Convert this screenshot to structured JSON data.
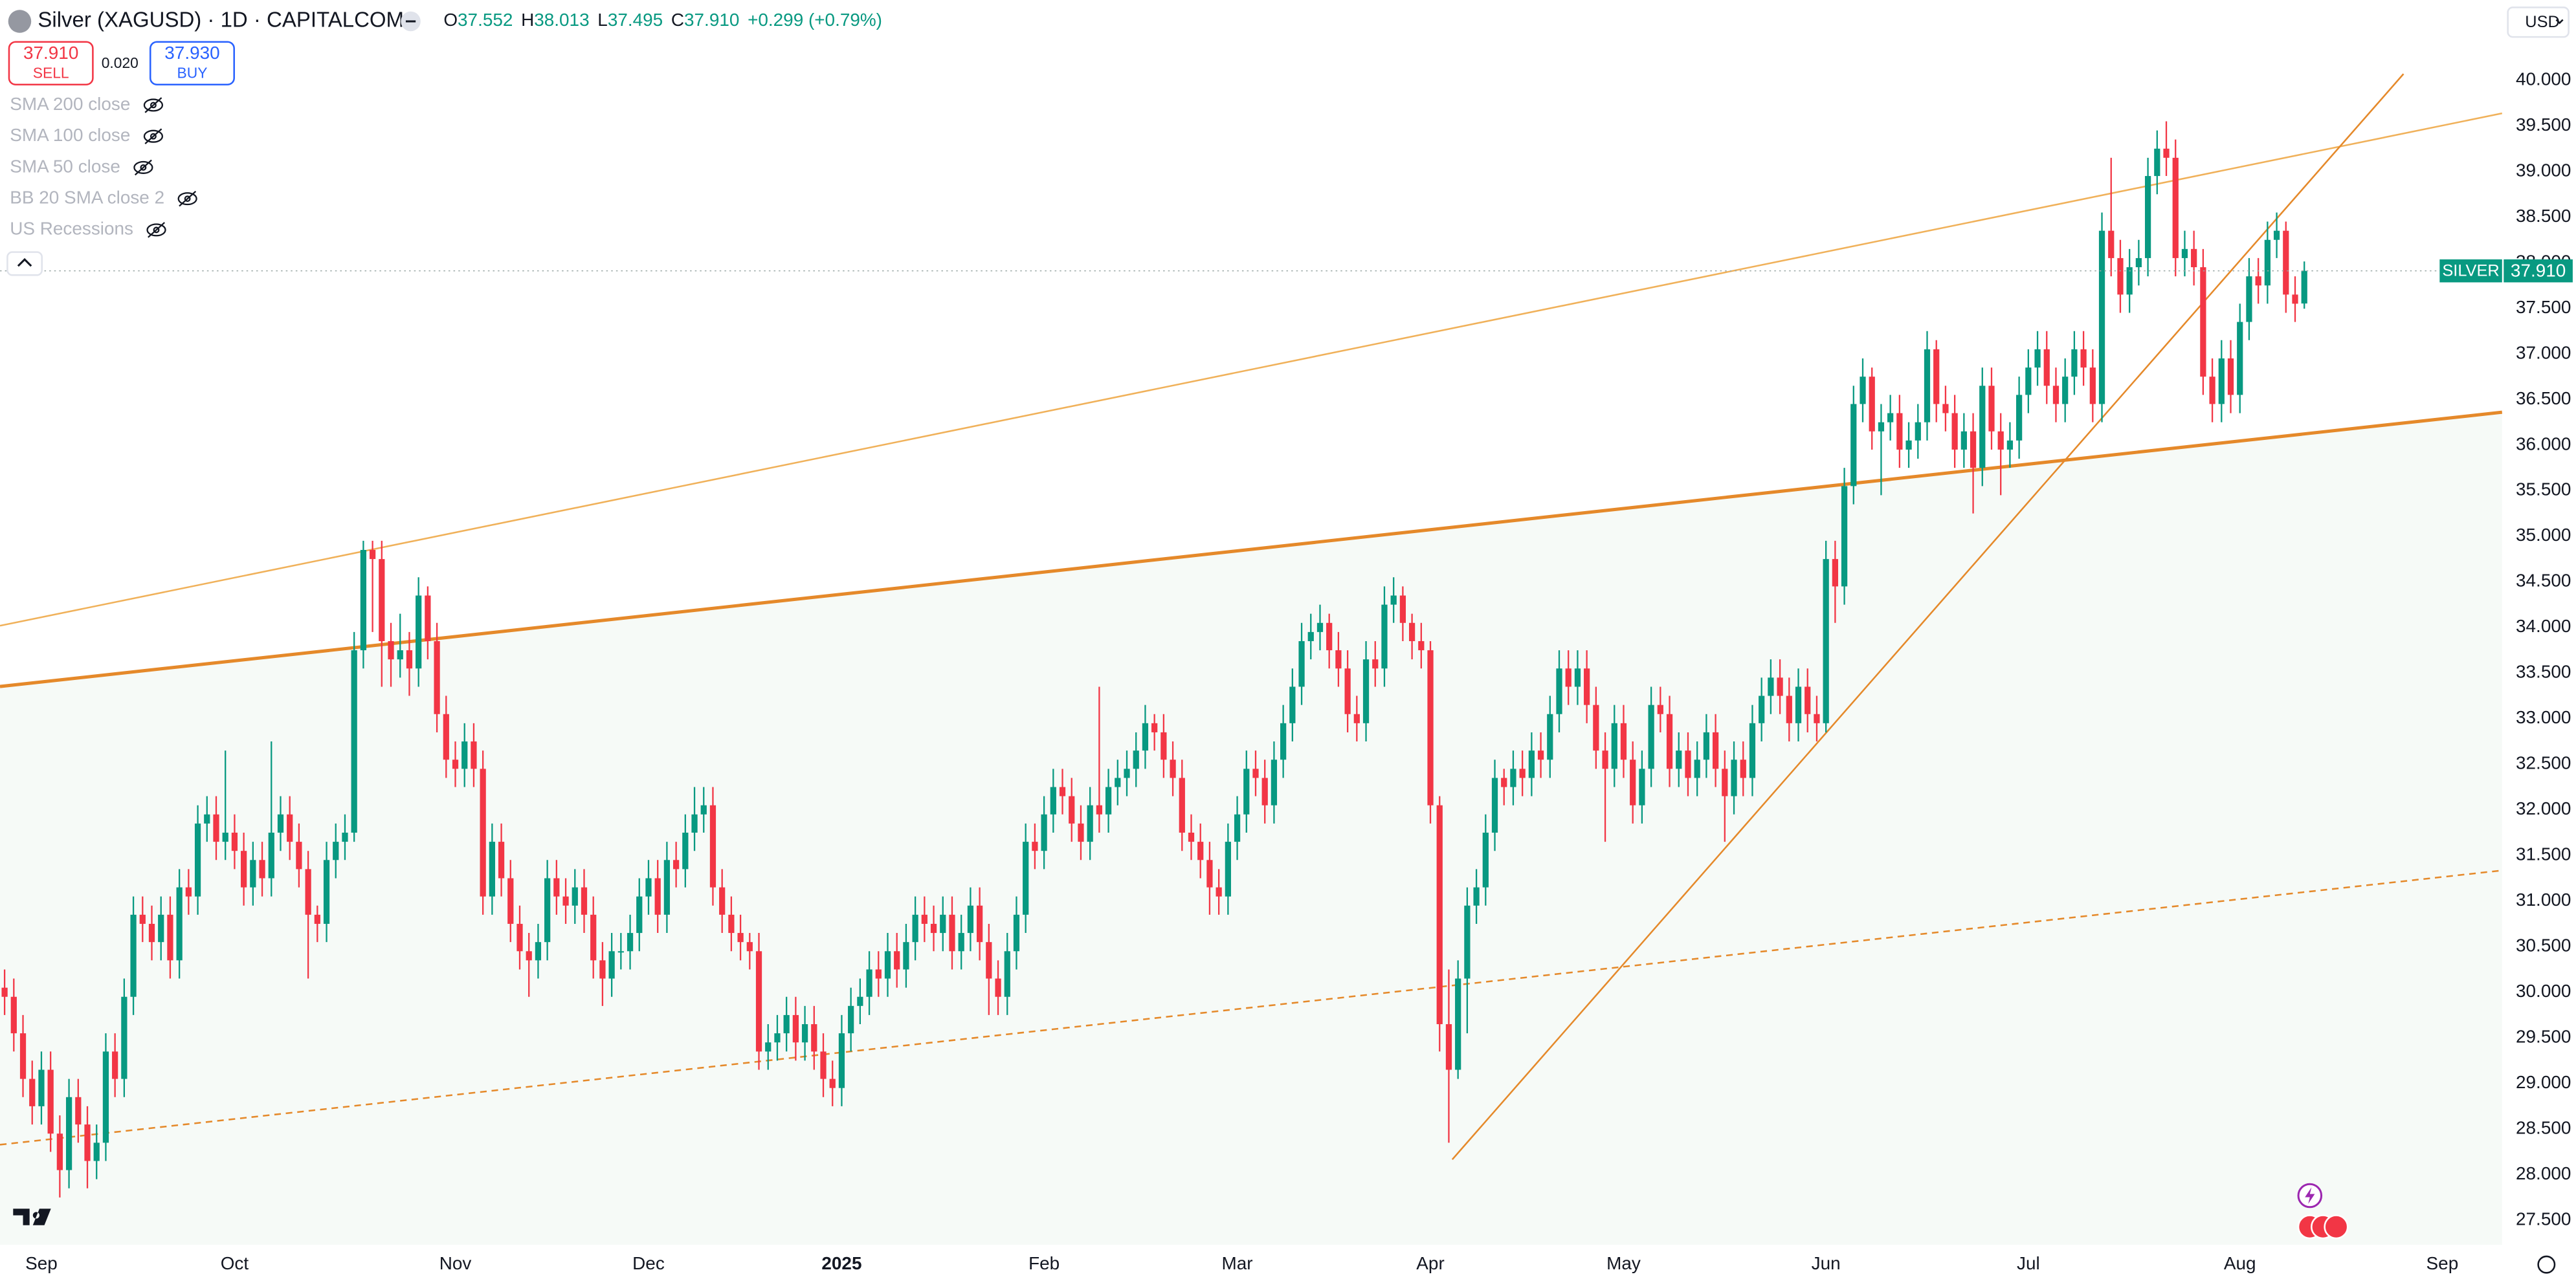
{
  "header": {
    "title": "Silver (XAGUSD) · 1D · CAPITALCOM",
    "ohlc": [
      {
        "key": "O",
        "value": "37.552"
      },
      {
        "key": "H",
        "value": "38.013"
      },
      {
        "key": "L",
        "value": "37.495"
      },
      {
        "key": "C",
        "value": "37.910"
      }
    ],
    "change": "+0.299 (+0.79%)",
    "sell": {
      "price": "37.910",
      "label": "SELL"
    },
    "spread": "0.020",
    "buy": {
      "price": "37.930",
      "label": "BUY"
    },
    "indicators": [
      "SMA 200 close",
      "SMA 100 close",
      "SMA 50 close",
      "BB 20 SMA close 2",
      "US Recessions"
    ],
    "currency": "USD"
  },
  "chart_data": {
    "type": "candlestick",
    "up_color": "#089981",
    "down_color": "#f23645",
    "grid": false,
    "symbol_label": "SILVER",
    "last_price": {
      "value": 37.91,
      "label": "37.910"
    },
    "xlim": [
      -0.5,
      271.5
    ],
    "xticks": [
      {
        "value": 4,
        "label": "Sep"
      },
      {
        "value": 25,
        "label": "Oct"
      },
      {
        "value": 49,
        "label": "Nov"
      },
      {
        "value": 70,
        "label": "Dec"
      },
      {
        "value": 91,
        "label": "2025"
      },
      {
        "value": 113,
        "label": "Feb"
      },
      {
        "value": 134,
        "label": "Mar"
      },
      {
        "value": 155,
        "label": "Apr"
      },
      {
        "value": 176,
        "label": "May"
      },
      {
        "value": 198,
        "label": "Jun"
      },
      {
        "value": 220,
        "label": "Jul"
      },
      {
        "value": 243,
        "label": "Aug"
      },
      {
        "value": 265,
        "label": "Sep"
      }
    ],
    "ylim": [
      27.23,
      40.88
    ],
    "yticks": [
      {
        "value": 27.5,
        "label": "27.500"
      },
      {
        "value": 28,
        "label": "28.000"
      },
      {
        "value": 28.5,
        "label": "28.500"
      },
      {
        "value": 29,
        "label": "29.000"
      },
      {
        "value": 29.5,
        "label": "29.500"
      },
      {
        "value": 30,
        "label": "30.000"
      },
      {
        "value": 30.5,
        "label": "30.500"
      },
      {
        "value": 31,
        "label": "31.000"
      },
      {
        "value": 31.5,
        "label": "31.500"
      },
      {
        "value": 32,
        "label": "32.000"
      },
      {
        "value": 32.5,
        "label": "32.500"
      },
      {
        "value": 33,
        "label": "33.000"
      },
      {
        "value": 33.5,
        "label": "33.500"
      },
      {
        "value": 34,
        "label": "34.000"
      },
      {
        "value": 34.5,
        "label": "34.500"
      },
      {
        "value": 35,
        "label": "35.000"
      },
      {
        "value": 35.5,
        "label": "35.500"
      },
      {
        "value": 36,
        "label": "36.000"
      },
      {
        "value": 36.5,
        "label": "36.500"
      },
      {
        "value": 37,
        "label": "37.000"
      },
      {
        "value": 37.5,
        "label": "37.500"
      },
      {
        "value": 38,
        "label": "38.000"
      },
      {
        "value": 38.5,
        "label": "38.500"
      },
      {
        "value": 39,
        "label": "39.000"
      },
      {
        "value": 39.5,
        "label": "39.500"
      },
      {
        "value": 40,
        "label": "40.000"
      }
    ],
    "open": [
      30.05,
      29.95,
      29.55,
      29.05,
      28.75,
      29.15,
      28.45,
      28.05,
      28.85,
      28.55,
      28.15,
      28.35,
      29.35,
      29.05,
      29.95,
      30.85,
      30.75,
      30.55,
      30.85,
      30.35,
      31.15,
      31.05,
      31.85,
      31.95,
      31.65,
      31.75,
      31.55,
      31.15,
      31.45,
      31.25,
      31.75,
      31.95,
      31.65,
      31.35,
      30.85,
      30.75,
      31.45,
      31.65,
      31.75,
      33.75,
      34.85,
      34.75,
      33.85,
      33.65,
      33.75,
      33.55,
      34.35,
      33.85,
      33.05,
      32.55,
      32.45,
      32.75,
      32.45,
      31.05,
      31.65,
      31.25,
      30.75,
      30.45,
      30.35,
      30.55,
      31.25,
      31.05,
      30.95,
      31.15,
      30.85,
      30.35,
      30.15,
      30.45,
      30.45,
      30.65,
      31.05,
      31.25,
      30.85,
      31.45,
      31.35,
      31.75,
      31.95,
      32.05,
      31.15,
      30.85,
      30.65,
      30.55,
      30.45,
      29.35,
      29.45,
      29.55,
      29.75,
      29.45,
      29.65,
      29.35,
      29.05,
      28.95,
      29.55,
      29.85,
      29.95,
      30.25,
      30.15,
      30.45,
      30.25,
      30.55,
      30.85,
      30.75,
      30.65,
      30.85,
      30.45,
      30.65,
      30.95,
      30.55,
      30.15,
      29.95,
      30.45,
      30.85,
      31.65,
      31.55,
      31.95,
      32.25,
      32.15,
      31.85,
      31.65,
      32.05,
      31.95,
      32.25,
      32.35,
      32.45,
      32.65,
      32.95,
      32.85,
      32.55,
      32.35,
      31.75,
      31.65,
      31.45,
      31.15,
      31.05,
      31.65,
      31.95,
      32.45,
      32.35,
      32.05,
      32.55,
      32.95,
      33.35,
      33.85,
      33.95,
      34.05,
      33.75,
      33.55,
      33.05,
      32.95,
      33.65,
      33.55,
      34.25,
      34.35,
      34.05,
      33.85,
      33.75,
      32.05,
      29.65,
      29.15,
      30.15,
      30.95,
      31.15,
      31.75,
      32.35,
      32.25,
      32.45,
      32.35,
      32.65,
      32.55,
      33.05,
      33.55,
      33.35,
      33.55,
      33.15,
      32.65,
      32.45,
      32.95,
      32.55,
      32.05,
      32.45,
      33.15,
      33.05,
      32.45,
      32.65,
      32.35,
      32.55,
      32.85,
      32.45,
      32.15,
      32.55,
      32.35,
      32.95,
      33.25,
      33.45,
      33.25,
      32.95,
      33.35,
      33.05,
      32.95,
      34.75,
      34.45,
      35.55,
      36.45,
      36.75,
      36.15,
      36.25,
      36.35,
      35.95,
      36.05,
      36.25,
      37.05,
      36.45,
      36.35,
      35.95,
      36.15,
      35.75,
      36.65,
      36.15,
      35.95,
      36.05,
      36.55,
      36.85,
      37.05,
      36.65,
      36.45,
      36.75,
      37.05,
      36.85,
      36.45,
      38.35,
      38.05,
      37.65,
      37.95,
      38.05,
      38.95,
      39.25,
      39.15,
      38.05,
      38.15,
      37.95,
      36.75,
      36.45,
      36.95,
      36.55,
      37.35,
      37.85,
      37.75,
      38.25,
      38.35,
      37.65,
      37.552
    ],
    "high": [
      30.25,
      30.15,
      29.75,
      29.25,
      29.35,
      29.35,
      28.65,
      29.05,
      29.05,
      28.75,
      28.55,
      29.55,
      29.55,
      30.15,
      31.05,
      31.05,
      30.95,
      31.05,
      31.05,
      31.35,
      31.35,
      32.05,
      32.15,
      32.15,
      32.65,
      31.95,
      31.75,
      31.65,
      31.65,
      32.75,
      32.15,
      32.15,
      31.85,
      31.55,
      30.95,
      31.65,
      31.85,
      31.95,
      33.95,
      34.95,
      34.95,
      34.95,
      34.05,
      34.15,
      33.95,
      34.55,
      34.45,
      34.05,
      33.25,
      32.75,
      32.95,
      32.95,
      32.65,
      31.85,
      31.85,
      31.45,
      30.95,
      30.65,
      30.75,
      31.45,
      31.45,
      31.25,
      31.35,
      31.35,
      31.05,
      30.55,
      30.65,
      30.65,
      30.85,
      31.25,
      31.45,
      31.45,
      31.65,
      31.65,
      31.95,
      32.25,
      32.25,
      32.25,
      31.35,
      31.05,
      30.85,
      30.65,
      30.65,
      29.65,
      29.75,
      29.95,
      29.95,
      29.85,
      29.85,
      29.55,
      29.25,
      29.75,
      30.05,
      30.15,
      30.45,
      30.45,
      30.65,
      30.65,
      30.75,
      31.05,
      31.05,
      30.95,
      31.05,
      31.05,
      30.85,
      31.15,
      31.15,
      30.75,
      30.35,
      30.65,
      31.05,
      31.85,
      31.85,
      32.15,
      32.45,
      32.45,
      32.35,
      32.05,
      32.25,
      33.35,
      32.45,
      32.55,
      32.65,
      32.85,
      33.15,
      33.05,
      33.05,
      32.75,
      32.55,
      31.95,
      31.85,
      31.65,
      31.35,
      31.85,
      32.15,
      32.65,
      32.65,
      32.55,
      32.75,
      33.15,
      33.55,
      34.05,
      34.15,
      34.25,
      34.15,
      33.95,
      33.75,
      33.25,
      33.85,
      33.85,
      34.45,
      34.55,
      34.45,
      34.15,
      34.05,
      33.85,
      32.15,
      30.25,
      30.35,
      31.15,
      31.35,
      31.95,
      32.55,
      32.45,
      32.65,
      32.65,
      32.85,
      32.85,
      33.25,
      33.75,
      33.75,
      33.75,
      33.75,
      33.35,
      32.85,
      33.15,
      33.15,
      32.75,
      32.65,
      33.35,
      33.35,
      33.25,
      32.85,
      32.85,
      32.75,
      33.05,
      33.05,
      32.65,
      32.75,
      32.75,
      33.15,
      33.45,
      33.65,
      33.65,
      33.45,
      33.55,
      33.55,
      33.25,
      34.95,
      34.95,
      35.75,
      36.65,
      36.95,
      36.85,
      36.45,
      36.55,
      36.55,
      36.25,
      36.45,
      37.25,
      37.15,
      36.65,
      36.55,
      36.35,
      36.35,
      36.85,
      36.85,
      36.35,
      36.25,
      36.75,
      37.05,
      37.25,
      37.25,
      36.85,
      36.95,
      37.25,
      37.25,
      37.05,
      38.55,
      39.15,
      38.25,
      38.15,
      38.25,
      39.15,
      39.45,
      39.55,
      39.35,
      38.35,
      38.35,
      38.15,
      36.95,
      37.15,
      37.15,
      37.55,
      38.05,
      38.05,
      38.45,
      38.55,
      38.45,
      37.85,
      38.013
    ],
    "low": [
      29.75,
      29.35,
      28.85,
      28.55,
      28.55,
      28.25,
      27.75,
      27.85,
      28.35,
      27.85,
      27.95,
      28.15,
      28.85,
      28.85,
      29.75,
      30.55,
      30.35,
      30.35,
      30.15,
      30.15,
      30.85,
      30.85,
      31.65,
      31.45,
      31.45,
      31.35,
      30.95,
      30.95,
      31.05,
      31.05,
      31.55,
      31.45,
      31.15,
      30.15,
      30.55,
      30.55,
      31.25,
      31.45,
      31.65,
      33.55,
      33.95,
      33.35,
      33.35,
      33.45,
      33.25,
      33.35,
      33.65,
      32.85,
      32.35,
      32.25,
      32.25,
      32.25,
      30.85,
      30.85,
      31.05,
      30.55,
      30.25,
      29.95,
      30.15,
      30.35,
      30.85,
      30.75,
      30.75,
      30.65,
      30.15,
      29.85,
      29.95,
      30.25,
      30.25,
      30.45,
      30.85,
      30.65,
      30.65,
      31.15,
      31.15,
      31.55,
      31.75,
      30.95,
      30.65,
      30.45,
      30.35,
      30.25,
      29.15,
      29.15,
      29.25,
      29.35,
      29.25,
      29.25,
      29.15,
      28.85,
      28.75,
      28.75,
      29.35,
      29.65,
      29.75,
      29.95,
      29.95,
      30.05,
      30.05,
      30.35,
      30.55,
      30.45,
      30.45,
      30.25,
      30.25,
      30.45,
      30.35,
      29.75,
      29.75,
      29.75,
      30.25,
      30.65,
      31.35,
      31.35,
      31.75,
      31.95,
      31.65,
      31.45,
      31.45,
      31.75,
      31.75,
      32.05,
      32.15,
      32.25,
      32.45,
      32.65,
      32.35,
      32.15,
      31.55,
      31.45,
      31.25,
      30.85,
      30.85,
      30.85,
      31.45,
      31.75,
      32.15,
      31.85,
      31.85,
      32.35,
      32.75,
      33.15,
      33.65,
      33.75,
      33.55,
      33.35,
      32.85,
      32.75,
      32.75,
      33.35,
      33.35,
      34.05,
      33.85,
      33.65,
      33.55,
      31.85,
      29.35,
      28.35,
      29.05,
      29.55,
      30.75,
      30.95,
      31.55,
      32.05,
      32.05,
      32.15,
      32.15,
      32.35,
      32.35,
      32.85,
      33.15,
      33.15,
      32.95,
      32.45,
      31.65,
      32.25,
      32.35,
      31.85,
      31.85,
      32.25,
      32.85,
      32.25,
      32.25,
      32.15,
      32.15,
      32.35,
      32.25,
      31.65,
      31.95,
      32.15,
      32.15,
      32.75,
      33.05,
      33.05,
      32.75,
      32.75,
      32.85,
      32.75,
      32.85,
      34.05,
      34.25,
      35.35,
      36.25,
      35.95,
      35.45,
      36.05,
      35.75,
      35.75,
      35.85,
      36.05,
      36.25,
      36.15,
      35.75,
      35.75,
      35.25,
      35.55,
      35.95,
      35.45,
      35.75,
      35.85,
      36.35,
      36.65,
      36.45,
      36.25,
      36.25,
      36.55,
      36.65,
      36.25,
      36.25,
      37.85,
      37.45,
      37.45,
      37.75,
      37.85,
      38.75,
      38.95,
      37.85,
      37.85,
      37.75,
      36.55,
      36.25,
      36.25,
      36.35,
      36.35,
      37.15,
      37.55,
      37.55,
      38.05,
      37.45,
      37.35,
      37.495
    ],
    "close": [
      29.95,
      29.55,
      29.05,
      28.75,
      29.15,
      28.45,
      28.05,
      28.85,
      28.55,
      28.15,
      28.35,
      29.35,
      29.05,
      29.95,
      30.85,
      30.75,
      30.55,
      30.85,
      30.35,
      31.15,
      31.05,
      31.85,
      31.95,
      31.65,
      31.75,
      31.55,
      31.15,
      31.45,
      31.25,
      31.75,
      31.95,
      31.65,
      31.35,
      30.85,
      30.75,
      31.45,
      31.65,
      31.75,
      33.75,
      34.85,
      34.75,
      33.85,
      33.65,
      33.75,
      33.55,
      34.35,
      33.85,
      33.05,
      32.55,
      32.45,
      32.75,
      32.45,
      31.05,
      31.65,
      31.25,
      30.75,
      30.45,
      30.35,
      30.55,
      31.25,
      31.05,
      30.95,
      31.15,
      30.85,
      30.35,
      30.15,
      30.45,
      30.45,
      30.65,
      31.05,
      31.25,
      30.85,
      31.45,
      31.35,
      31.75,
      31.95,
      32.05,
      31.15,
      30.85,
      30.65,
      30.55,
      30.45,
      29.35,
      29.45,
      29.55,
      29.75,
      29.45,
      29.65,
      29.35,
      29.05,
      28.95,
      29.55,
      29.85,
      29.95,
      30.25,
      30.15,
      30.45,
      30.25,
      30.55,
      30.85,
      30.75,
      30.65,
      30.85,
      30.45,
      30.65,
      30.95,
      30.55,
      30.15,
      29.95,
      30.45,
      30.85,
      31.65,
      31.55,
      31.95,
      32.25,
      32.15,
      31.85,
      31.65,
      32.05,
      31.95,
      32.25,
      32.35,
      32.45,
      32.65,
      32.95,
      32.85,
      32.55,
      32.35,
      31.75,
      31.65,
      31.45,
      31.15,
      31.05,
      31.65,
      31.95,
      32.45,
      32.35,
      32.05,
      32.55,
      32.95,
      33.35,
      33.85,
      33.95,
      34.05,
      33.75,
      33.55,
      33.05,
      32.95,
      33.65,
      33.55,
      34.25,
      34.35,
      34.05,
      33.85,
      33.75,
      32.05,
      29.65,
      29.15,
      30.15,
      30.95,
      31.15,
      31.75,
      32.35,
      32.25,
      32.45,
      32.35,
      32.65,
      32.55,
      33.05,
      33.55,
      33.35,
      33.55,
      33.15,
      32.65,
      32.45,
      32.95,
      32.55,
      32.05,
      32.45,
      33.15,
      33.05,
      32.45,
      32.65,
      32.35,
      32.55,
      32.85,
      32.45,
      32.15,
      32.55,
      32.35,
      32.95,
      33.25,
      33.45,
      33.25,
      32.95,
      33.35,
      33.05,
      32.95,
      34.75,
      34.45,
      35.55,
      36.45,
      36.75,
      36.15,
      36.25,
      36.35,
      35.95,
      36.05,
      36.25,
      37.05,
      36.45,
      36.35,
      35.95,
      36.15,
      35.75,
      36.65,
      36.15,
      35.95,
      36.05,
      36.55,
      36.85,
      37.05,
      36.65,
      36.45,
      36.75,
      37.05,
      36.85,
      36.45,
      38.35,
      38.05,
      37.65,
      37.95,
      38.05,
      38.95,
      39.25,
      39.15,
      38.05,
      38.15,
      37.95,
      36.75,
      36.45,
      36.95,
      36.55,
      37.35,
      37.85,
      37.75,
      38.25,
      38.35,
      37.65,
      37.55,
      37.91
    ]
  }
}
